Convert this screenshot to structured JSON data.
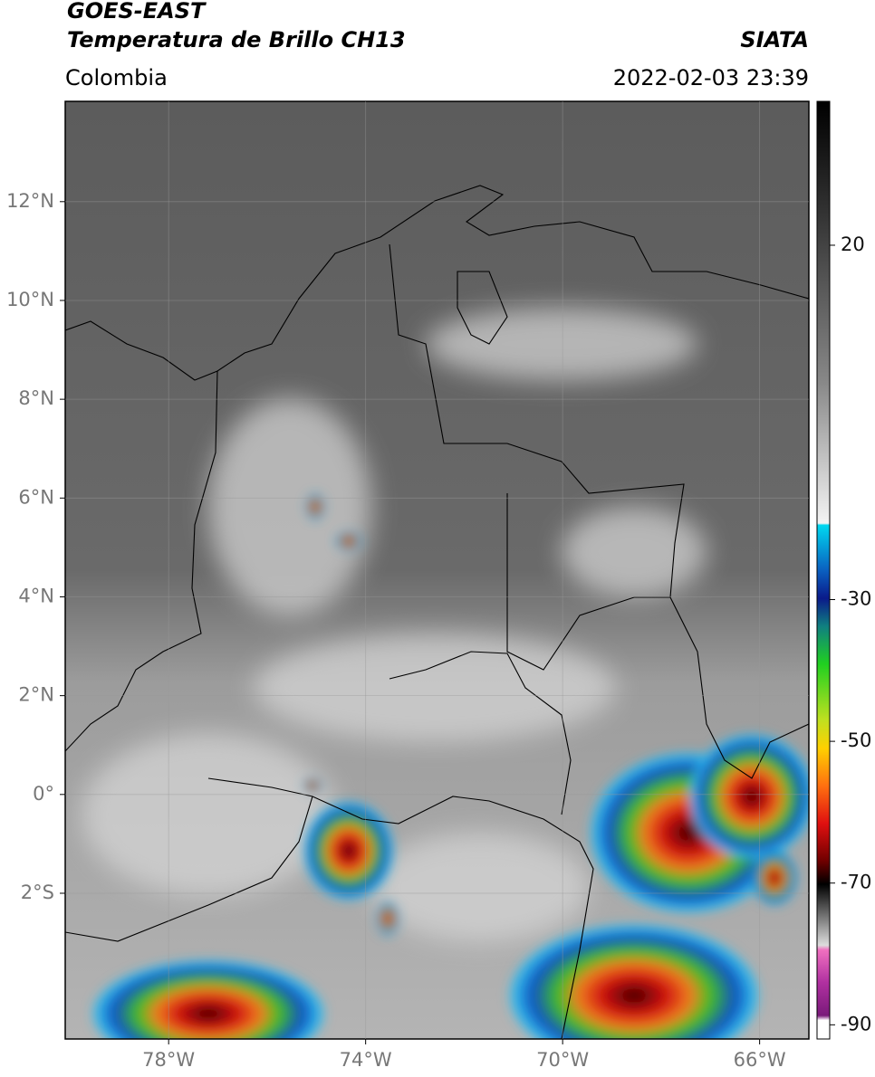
{
  "header": {
    "title": "GOES-EAST",
    "subtitle": "Temperatura de Brillo CH13",
    "region": "Colombia",
    "source": "SIATA",
    "datetime": "2022-02-03 23:39"
  },
  "map": {
    "lon_lim": [
      -80.1,
      -65
    ],
    "lat_lim": [
      -4.95,
      14.03
    ],
    "lat_ticks": [
      {
        "value": 12,
        "label": "12°N"
      },
      {
        "value": 10,
        "label": "10°N"
      },
      {
        "value": 8,
        "label": "8°N"
      },
      {
        "value": 6,
        "label": "6°N"
      },
      {
        "value": 4,
        "label": "4°N"
      },
      {
        "value": 2,
        "label": "2°N"
      },
      {
        "value": 0,
        "label": "0°"
      },
      {
        "value": -2,
        "label": "2°S"
      }
    ],
    "lon_ticks": [
      {
        "value": -78,
        "label": "78°W"
      },
      {
        "value": -74,
        "label": "74°W"
      },
      {
        "value": -70,
        "label": "70°W"
      },
      {
        "value": -66,
        "label": "66°W"
      }
    ]
  },
  "colorbar": {
    "lim": [
      -92,
      40.3
    ],
    "ticks": [
      20,
      -30,
      -50,
      -70,
      -90
    ]
  }
}
